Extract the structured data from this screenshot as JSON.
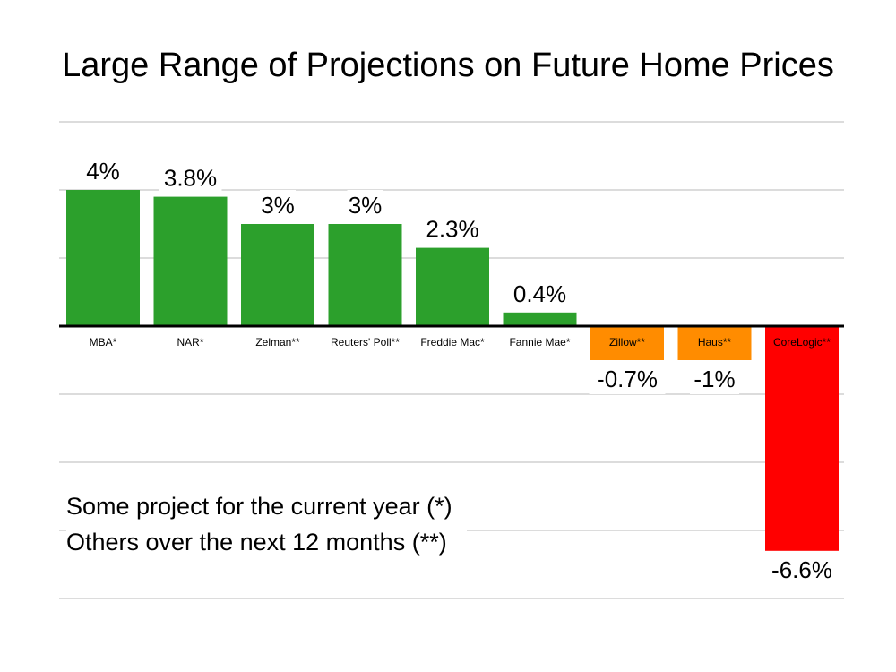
{
  "chart_data": {
    "type": "bar",
    "title": "Large Range of Projections on Future Home Prices",
    "categories": [
      "MBA*",
      "NAR*",
      "Zelman**",
      "Reuters' Poll**",
      "Freddie Mac*",
      "Fannie Mae*",
      "Zillow**",
      "Haus**",
      "CoreLogic**"
    ],
    "values": [
      4,
      3.8,
      3,
      3,
      2.3,
      0.4,
      -0.7,
      -1,
      -6.6
    ],
    "value_labels": [
      "4%",
      "3.8%",
      "3%",
      "3%",
      "2.3%",
      "0.4%",
      "-0.7%",
      "-1%",
      "-6.6%"
    ],
    "colors": [
      "#2ca02c",
      "#2ca02c",
      "#2ca02c",
      "#2ca02c",
      "#2ca02c",
      "#2ca02c",
      "#ff8c00",
      "#ff8c00",
      "#ff0000"
    ],
    "ylim": [
      -8,
      6
    ],
    "grid": true,
    "xlabel": "",
    "ylabel": ""
  },
  "notes": {
    "line1": "Some project for the current year (*)",
    "line2": "Others over the next 12 months (**)"
  }
}
